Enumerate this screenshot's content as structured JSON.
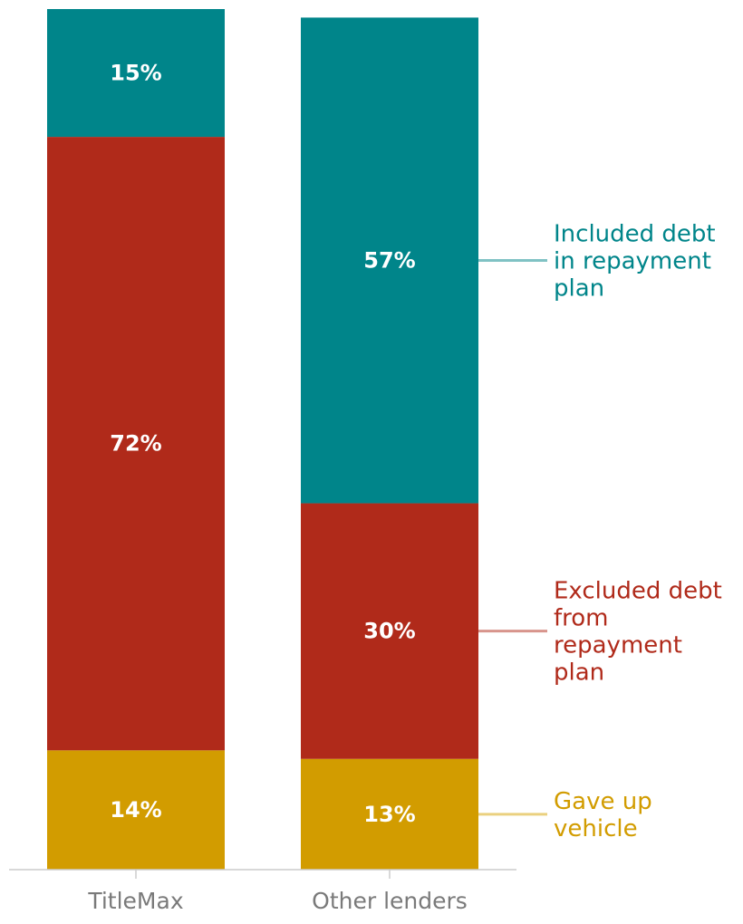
{
  "chart_data": {
    "type": "bar",
    "stacked": true,
    "orientation": "vertical",
    "categories": [
      "TitleMax",
      "Other lenders"
    ],
    "series": [
      {
        "name": "Gave up vehicle",
        "legend_lines": [
          "Gave up",
          "vehicle"
        ],
        "color": "#d29c00",
        "leader_color": "#ead07f",
        "values": [
          14,
          13
        ],
        "labels": [
          "14%",
          "13%"
        ]
      },
      {
        "name": "Excluded debt from repayment plan",
        "legend_lines": [
          "Excluded debt",
          "from",
          "repayment",
          "plan"
        ],
        "color": "#b02a1a",
        "leader_color": "#d8948c",
        "values": [
          72,
          30
        ],
        "labels": [
          "72%",
          "30%"
        ]
      },
      {
        "name": "Included debt in repayment plan",
        "legend_lines": [
          "Included debt",
          "in repayment",
          "plan"
        ],
        "color": "#00858a",
        "leader_color": "#80c2c4",
        "values": [
          15,
          57
        ],
        "labels": [
          "15%",
          "57%"
        ]
      }
    ],
    "ylim": [
      0,
      101
    ],
    "title": "",
    "xlabel": "",
    "ylabel": "",
    "grid": false,
    "legend": "right"
  }
}
